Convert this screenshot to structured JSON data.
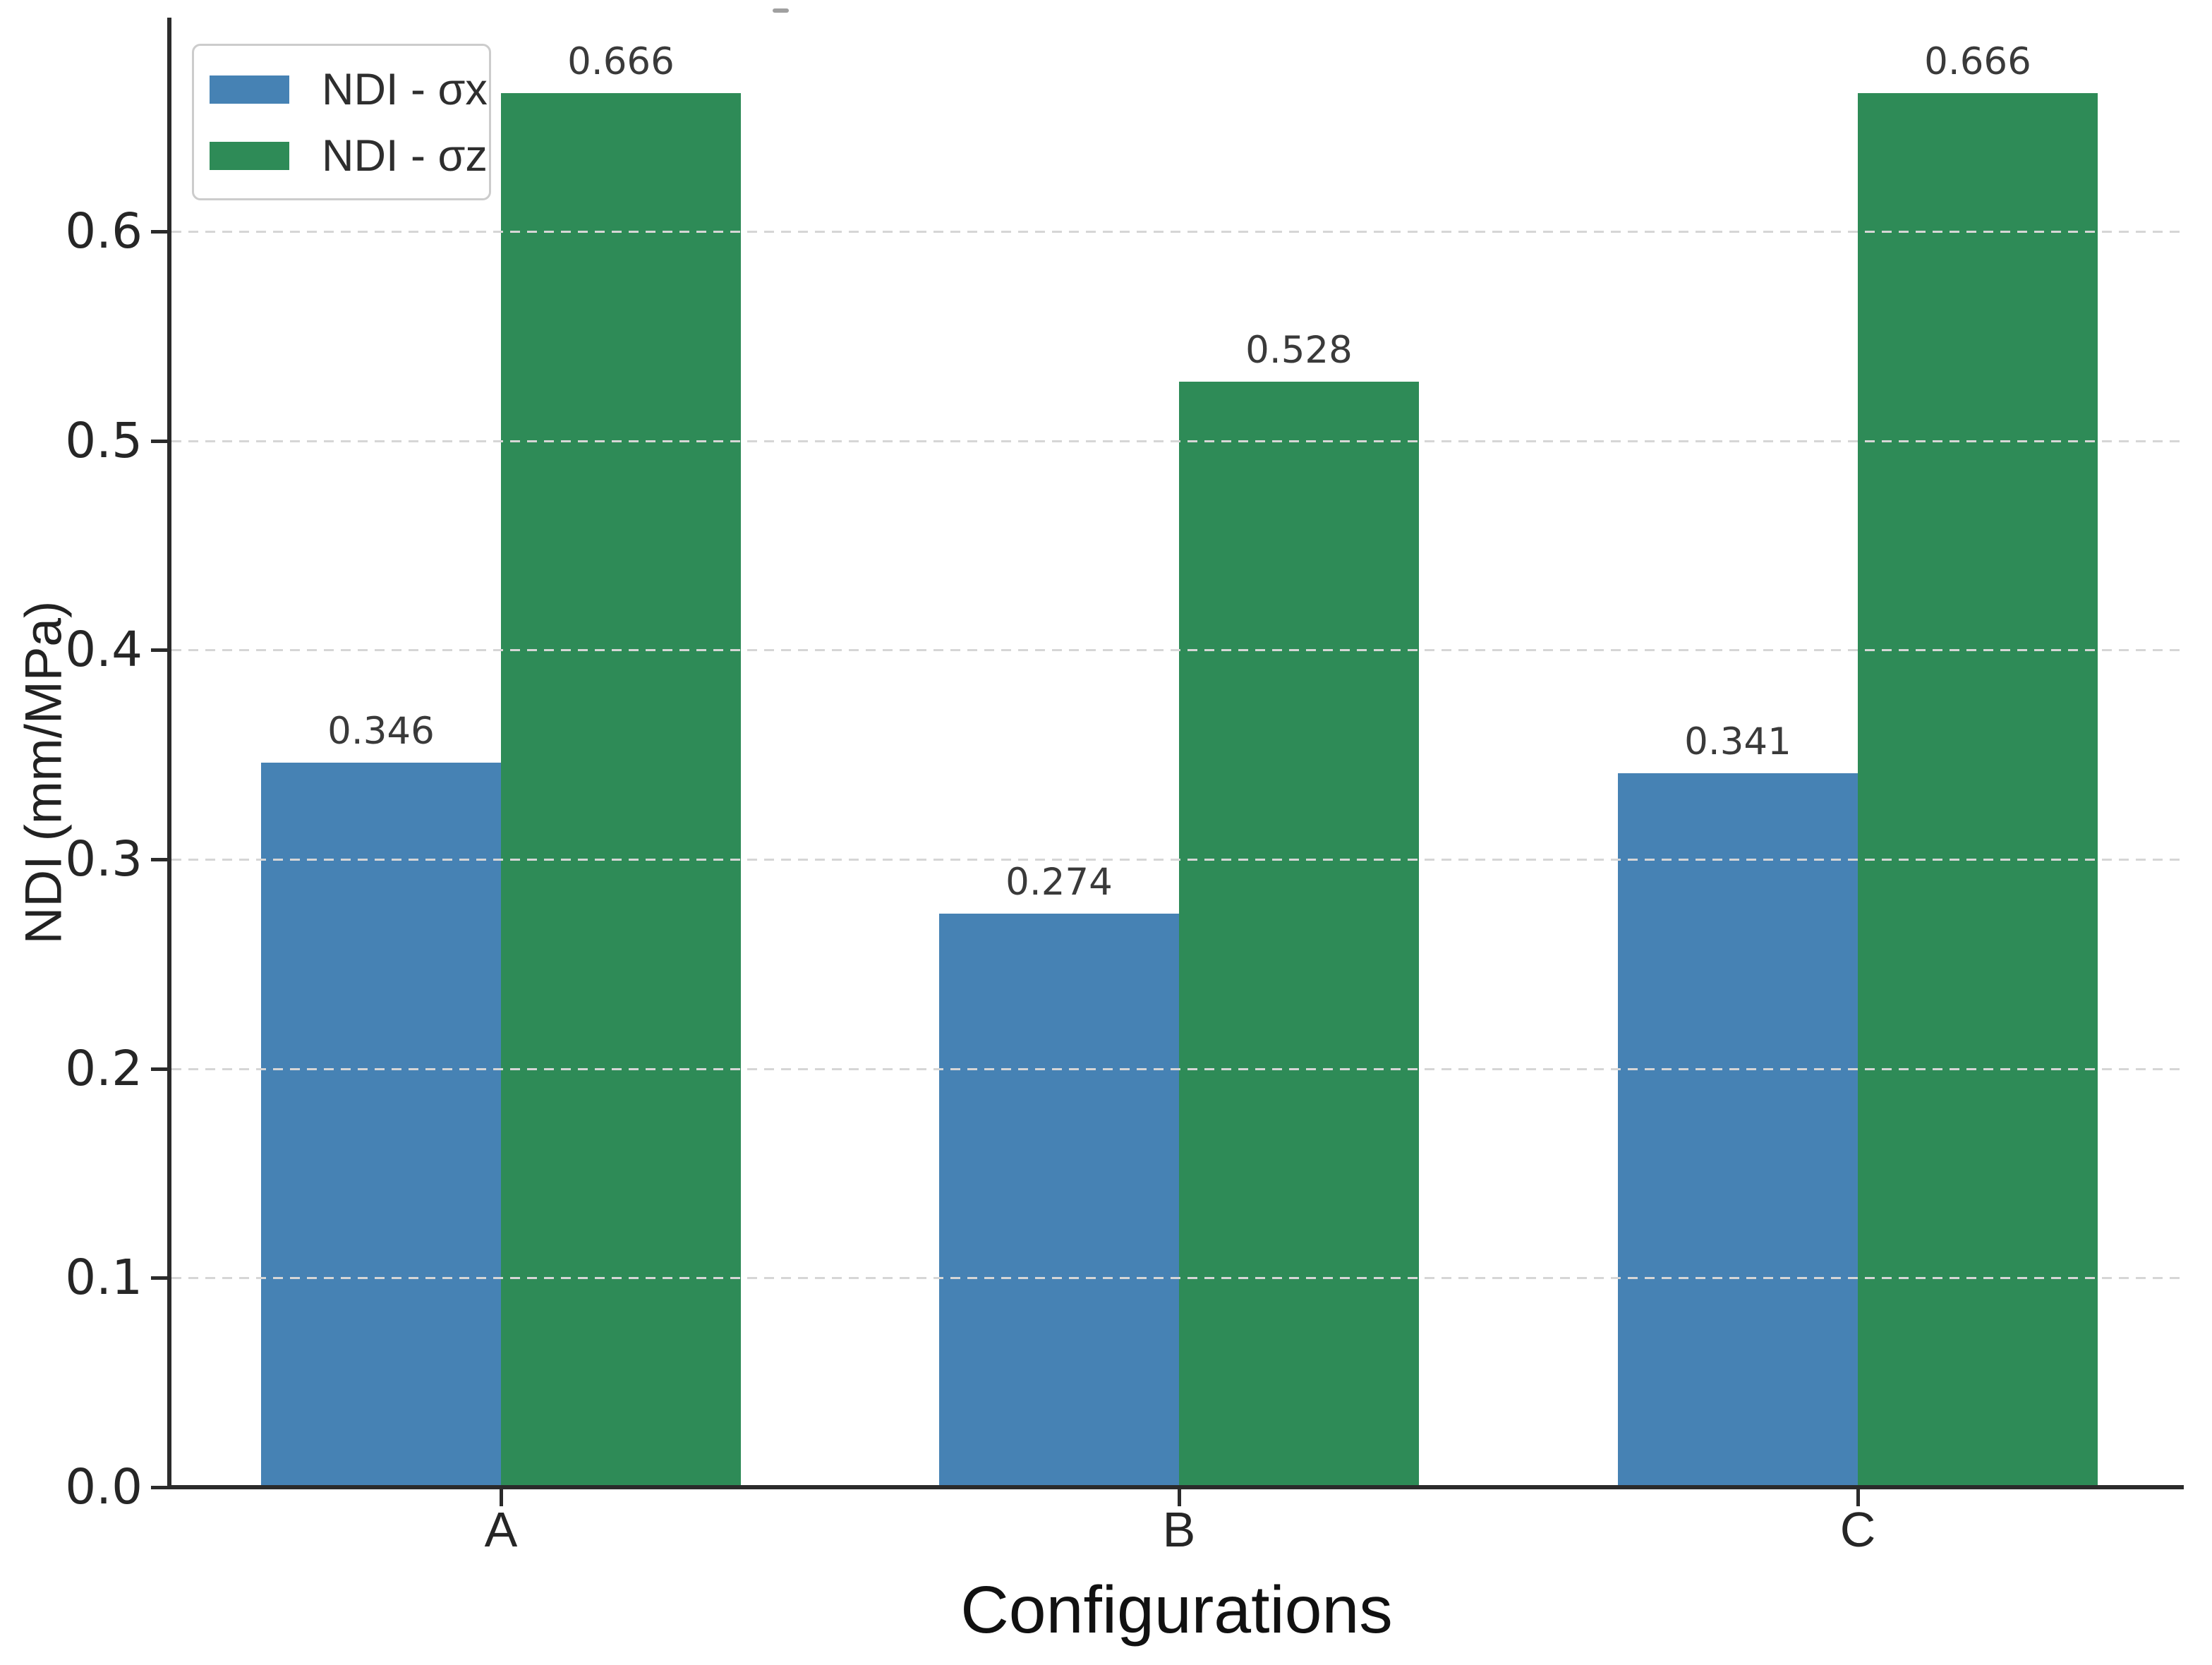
{
  "chart_data": {
    "type": "bar",
    "title": "",
    "xlabel": "Configurations",
    "ylabel": "NDI (mm/MPa)",
    "categories": [
      "A",
      "B",
      "C"
    ],
    "series": [
      {
        "name": "NDI - σx",
        "color": "#4682b4",
        "values": [
          0.346,
          0.274,
          0.341
        ],
        "value_labels": [
          "0.346",
          "0.274",
          "0.341"
        ]
      },
      {
        "name": "NDI - σz",
        "color": "#2e8b57",
        "values": [
          0.666,
          0.528,
          0.666
        ],
        "value_labels": [
          "0.666",
          "0.528",
          "0.666"
        ]
      }
    ],
    "ytick_labels": [
      "0.0",
      "0.1",
      "0.2",
      "0.3",
      "0.4",
      "0.5",
      "0.6"
    ],
    "yticks": [
      0.0,
      0.1,
      0.2,
      0.3,
      0.4,
      0.5,
      0.6
    ],
    "ylim": [
      0,
      0.7
    ],
    "grid": "horizontal-dashed",
    "grid_color": "#d6d6d6",
    "spine_color": "#2b2b2b",
    "legend_position": "upper-left"
  }
}
